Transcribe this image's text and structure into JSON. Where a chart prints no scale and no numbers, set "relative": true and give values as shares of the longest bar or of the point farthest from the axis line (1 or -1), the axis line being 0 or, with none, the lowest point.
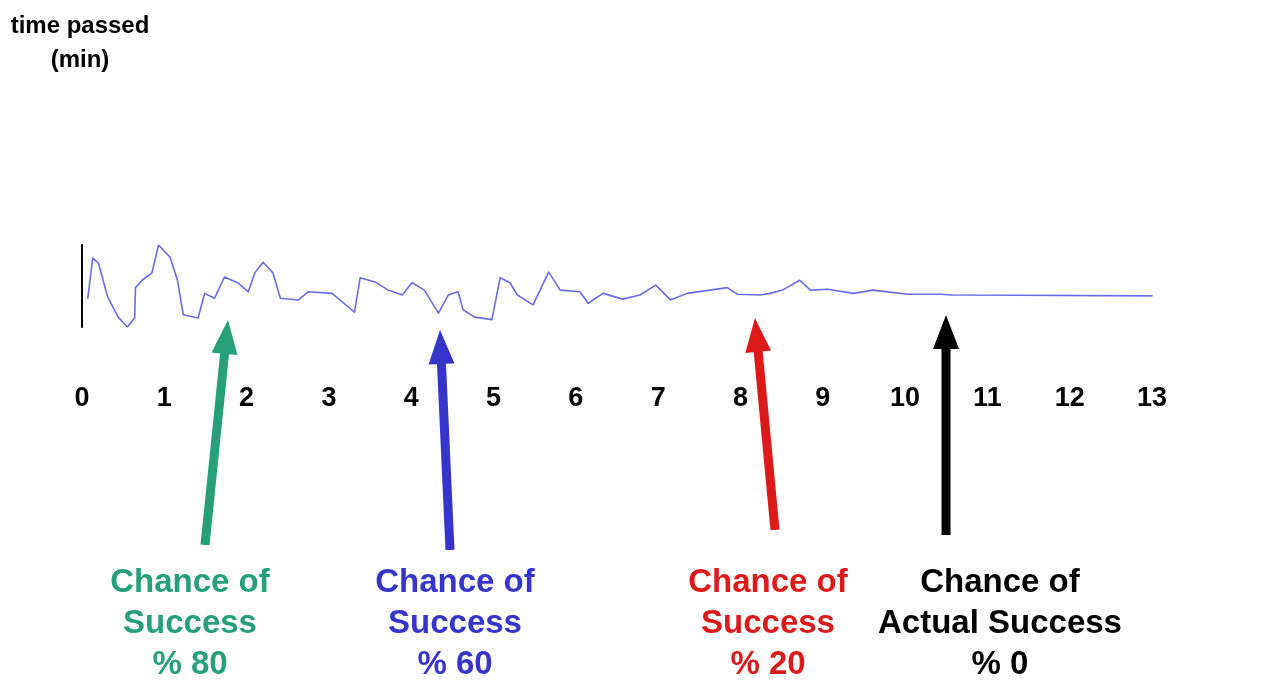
{
  "chart_data": {
    "type": "line",
    "relative": true,
    "x": [
      0.07,
      0.13,
      0.2,
      0.31,
      0.44,
      0.55,
      0.64,
      0.65,
      0.73,
      0.85,
      0.93,
      1.07,
      1.16,
      1.23,
      1.41,
      1.49,
      1.61,
      1.73,
      1.89,
      2.02,
      2.1,
      2.2,
      2.32,
      2.41,
      2.63,
      2.75,
      3.04,
      3.31,
      3.38,
      3.56,
      3.72,
      3.89,
      4.01,
      4.16,
      4.33,
      4.45,
      4.57,
      4.63,
      4.77,
      4.98,
      5.08,
      5.2,
      5.29,
      5.48,
      5.67,
      5.81,
      6.05,
      6.15,
      6.33,
      6.57,
      6.78,
      6.97,
      7.15,
      7.35,
      7.63,
      7.84,
      7.96,
      8.24,
      8.36,
      8.51,
      8.72,
      8.85,
      9.06,
      9.37,
      9.61,
      10.03,
      10.43,
      10.58,
      13
    ],
    "series": [
      {
        "color": "#6b6bea",
        "values": [
          0.35,
          0.84,
          0.78,
          0.37,
          0.12,
          0,
          0.11,
          0.48,
          0.57,
          0.66,
          1,
          0.85,
          0.57,
          0.15,
          0.11,
          0.41,
          0.35,
          0.61,
          0.54,
          0.43,
          0.66,
          0.79,
          0.66,
          0.35,
          0.33,
          0.43,
          0.41,
          0.18,
          0.6,
          0.55,
          0.45,
          0.39,
          0.54,
          0.45,
          0.17,
          0.39,
          0.43,
          0.21,
          0.12,
          0.09,
          0.6,
          0.54,
          0.39,
          0.27,
          0.67,
          0.45,
          0.43,
          0.29,
          0.41,
          0.34,
          0.39,
          0.51,
          0.33,
          0.41,
          0.45,
          0.48,
          0.4,
          0.39,
          0.41,
          0.45,
          0.57,
          0.45,
          0.46,
          0.41,
          0.45,
          0.4,
          0.4,
          0.39,
          0.38
        ]
      }
    ],
    "xlim": [
      0,
      13
    ],
    "xticks": [
      0,
      1,
      2,
      3,
      4,
      5,
      6,
      7,
      8,
      9,
      10,
      11,
      12,
      13
    ],
    "marker": "none",
    "annotations": [
      "time passed\n(min)",
      "Chance of\nSuccess\n% 80",
      "Chance of\nSuccess\n% 60",
      "Chance of\nSuccess\n% 20",
      "Chance of\nActual Success\n% 0"
    ]
  }
}
